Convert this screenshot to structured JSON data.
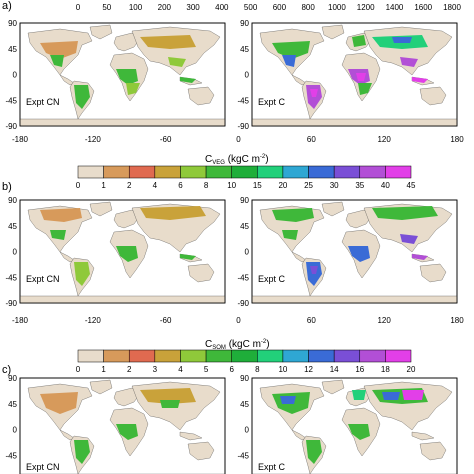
{
  "panels": [
    {
      "letter": "a)",
      "top_scale_ticks": [
        "0",
        "50",
        "100",
        "200",
        "300",
        "400",
        "500",
        "600",
        "800",
        "1000",
        "1200",
        "1400",
        "1600",
        "1800"
      ],
      "maps": [
        {
          "label": "Expt CN"
        },
        {
          "label": "Expt C"
        }
      ],
      "x_ticks": [
        "-180",
        "-120",
        "-60",
        "0",
        "60",
        "120",
        "180"
      ],
      "y_ticks": [
        "90",
        "45",
        "0",
        "-45",
        "-90"
      ],
      "colorbar": {
        "title_main": "C",
        "title_sub": "VEG",
        "title_units": "(kgC m",
        "title_exp": "-2",
        "title_close": ")",
        "ticks": [
          "0",
          "1",
          "2",
          "4",
          "6",
          "8",
          "10",
          "15",
          "20",
          "25",
          "30",
          "35",
          "40",
          "45"
        ]
      }
    },
    {
      "letter": "b)",
      "maps": [
        {
          "label": "Expt CN"
        },
        {
          "label": "Expt C"
        }
      ],
      "x_ticks": [
        "-180",
        "-120",
        "-60",
        "0",
        "60",
        "120",
        "180"
      ],
      "y_ticks": [
        "90",
        "45",
        "0",
        "-45",
        "-90"
      ],
      "colorbar": {
        "title_main": "C",
        "title_sub": "SOM",
        "title_units": "(kgC m",
        "title_exp": "-2",
        "title_close": ")",
        "ticks": [
          "0",
          "1",
          "2",
          "3",
          "4",
          "5",
          "6",
          "8",
          "10",
          "12",
          "14",
          "16",
          "18",
          "20"
        ]
      }
    },
    {
      "letter": "c)",
      "maps": [
        {
          "label": "Expt CN"
        },
        {
          "label": "Expt C"
        }
      ],
      "y_ticks": [
        "90",
        "45",
        "0",
        "-45"
      ]
    }
  ],
  "colors": {
    "bins": [
      "#e8dccb",
      "#d79a5b",
      "#e06a50",
      "#c9a23a",
      "#8fc93a",
      "#3fb83a",
      "#1fae3a",
      "#22d07a",
      "#2fa7d3",
      "#3a6bd6",
      "#7a4fd6",
      "#b24fd6",
      "#e23fe8"
    ],
    "land_light": "#e8dccb",
    "land_mid": "#c9a23a",
    "land_green": "#3fb83a",
    "land_green2": "#22d07a",
    "land_blue": "#3a6bd6",
    "land_purple": "#b24fd6",
    "land_magenta": "#e23fe8",
    "land_orange": "#d79a5b",
    "land_red": "#e06a50"
  }
}
